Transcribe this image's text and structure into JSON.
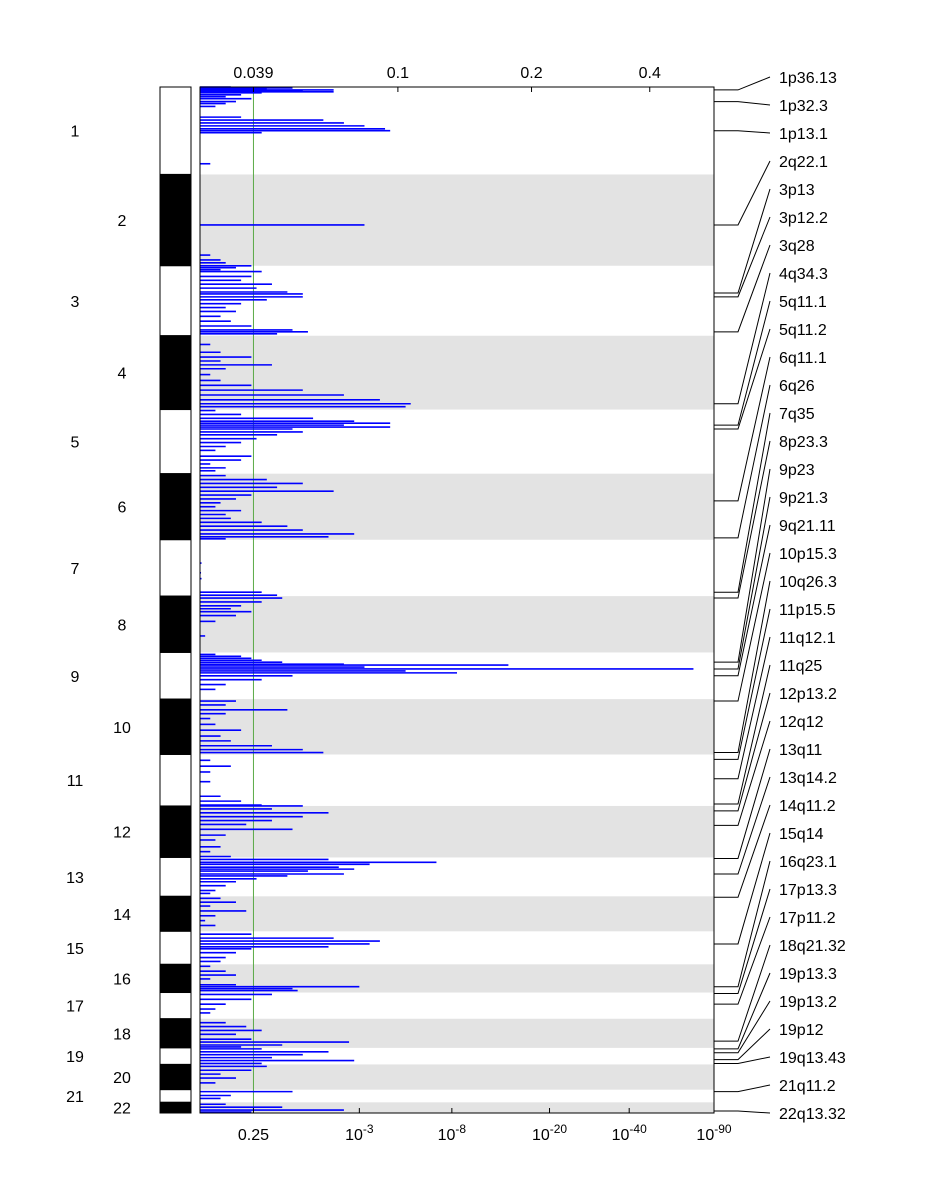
{
  "chart_data": {
    "type": "genomic-significance-plot",
    "chromosomes": [
      {
        "name": "1",
        "start": 0,
        "end": 9.0
      },
      {
        "name": "2",
        "start": 9.0,
        "end": 18.4
      },
      {
        "name": "3",
        "start": 18.4,
        "end": 25.6
      },
      {
        "name": "4",
        "start": 25.6,
        "end": 33.2
      },
      {
        "name": "5",
        "start": 33.2,
        "end": 39.8
      },
      {
        "name": "6",
        "start": 39.8,
        "end": 46.6
      },
      {
        "name": "7",
        "start": 46.6,
        "end": 52.4
      },
      {
        "name": "8",
        "start": 52.4,
        "end": 58.2
      },
      {
        "name": "9",
        "start": 58.2,
        "end": 63.0
      },
      {
        "name": "10",
        "start": 63.0,
        "end": 68.7
      },
      {
        "name": "11",
        "start": 68.7,
        "end": 74.0
      },
      {
        "name": "12",
        "start": 74.0,
        "end": 79.3
      },
      {
        "name": "13",
        "start": 79.3,
        "end": 83.3
      },
      {
        "name": "14",
        "start": 83.3,
        "end": 86.9
      },
      {
        "name": "15",
        "start": 86.9,
        "end": 90.3
      },
      {
        "name": "16",
        "start": 90.3,
        "end": 93.2
      },
      {
        "name": "17",
        "start": 93.2,
        "end": 95.9
      },
      {
        "name": "18",
        "start": 95.9,
        "end": 98.9
      },
      {
        "name": "19",
        "start": 98.9,
        "end": 100.6
      },
      {
        "name": "20",
        "start": 100.6,
        "end": 103.2
      },
      {
        "name": "21",
        "start": 103.2,
        "end": 104.5
      },
      {
        "name": "22",
        "start": 104.5,
        "end": 105.6
      }
    ],
    "genome_end": 105.6,
    "threshold": {
      "q": 0.25,
      "score": 0.039,
      "color": "#5aaa46"
    },
    "bottom_axis": {
      "ticks": [
        {
          "pos": 0.104,
          "base": "0.25",
          "exp": ""
        },
        {
          "pos": 0.31,
          "base": "10",
          "exp": "-3"
        },
        {
          "pos": 0.49,
          "base": "10",
          "exp": "-8"
        },
        {
          "pos": 0.68,
          "base": "10",
          "exp": "-20"
        },
        {
          "pos": 0.835,
          "base": "10",
          "exp": "-40"
        },
        {
          "pos": 1.0,
          "base": "10",
          "exp": "-90"
        }
      ]
    },
    "top_axis": {
      "ticks": [
        {
          "pos": 0.104,
          "label": "0.039"
        },
        {
          "pos": 0.385,
          "label": "0.1"
        },
        {
          "pos": 0.645,
          "label": "0.2"
        },
        {
          "pos": 0.875,
          "label": "0.4"
        }
      ]
    },
    "peaks": [
      {
        "label": "1p36.13",
        "pos": 0.3
      },
      {
        "label": "1p32.3",
        "pos": 1.5
      },
      {
        "label": "1p13.1",
        "pos": 4.5
      },
      {
        "label": "2q22.1",
        "pos": 14.2
      },
      {
        "label": "3p13",
        "pos": 21.2
      },
      {
        "label": "3p12.2",
        "pos": 21.6
      },
      {
        "label": "3q28",
        "pos": 25.2
      },
      {
        "label": "4q34.3",
        "pos": 32.6
      },
      {
        "label": "5q11.1",
        "pos": 34.8
      },
      {
        "label": "5q11.2",
        "pos": 35.2
      },
      {
        "label": "6q11.1",
        "pos": 42.6
      },
      {
        "label": "6q26",
        "pos": 46.4
      },
      {
        "label": "7q35",
        "pos": 52.0
      },
      {
        "label": "8p23.3",
        "pos": 52.6
      },
      {
        "label": "9p23",
        "pos": 59.2
      },
      {
        "label": "9p21.3",
        "pos": 59.9
      },
      {
        "label": "9q21.11",
        "pos": 60.6
      },
      {
        "label": "10p15.3",
        "pos": 63.2
      },
      {
        "label": "10q26.3",
        "pos": 68.5
      },
      {
        "label": "11p15.5",
        "pos": 69.2
      },
      {
        "label": "11q12.1",
        "pos": 71.2
      },
      {
        "label": "11q25",
        "pos": 73.8
      },
      {
        "label": "12p13.2",
        "pos": 74.5
      },
      {
        "label": "12q12",
        "pos": 76.0
      },
      {
        "label": "13q11",
        "pos": 79.4
      },
      {
        "label": "13q14.2",
        "pos": 81.0
      },
      {
        "label": "14q11.2",
        "pos": 83.4
      },
      {
        "label": "15q14",
        "pos": 88.2
      },
      {
        "label": "16q23.1",
        "pos": 92.6
      },
      {
        "label": "17p13.3",
        "pos": 93.3
      },
      {
        "label": "17p11.2",
        "pos": 94.4
      },
      {
        "label": "18q21.32",
        "pos": 98.2
      },
      {
        "label": "19p13.3",
        "pos": 99.0
      },
      {
        "label": "19p13.2",
        "pos": 99.4
      },
      {
        "label": "19p12",
        "pos": 100.1
      },
      {
        "label": "19q13.43",
        "pos": 100.5
      },
      {
        "label": "21q11.2",
        "pos": 103.4
      },
      {
        "label": "22q13.32",
        "pos": 105.4
      }
    ],
    "bars": [
      [
        0.0,
        0.06
      ],
      [
        0.1,
        0.18
      ],
      [
        0.2,
        0.13
      ],
      [
        0.3,
        0.26
      ],
      [
        0.4,
        0.2
      ],
      [
        0.5,
        0.26
      ],
      [
        0.6,
        0.12
      ],
      [
        0.8,
        0.08
      ],
      [
        1.0,
        0.05
      ],
      [
        1.2,
        0.1
      ],
      [
        1.5,
        0.07
      ],
      [
        1.7,
        0.05
      ],
      [
        2.0,
        0.03
      ],
      [
        3.1,
        0.08
      ],
      [
        3.4,
        0.24
      ],
      [
        3.7,
        0.28
      ],
      [
        4.0,
        0.32
      ],
      [
        4.3,
        0.36
      ],
      [
        4.5,
        0.37
      ],
      [
        4.7,
        0.12
      ],
      [
        7.9,
        0.02
      ],
      [
        14.2,
        0.32
      ],
      [
        17.3,
        0.02
      ],
      [
        17.8,
        0.04
      ],
      [
        18.1,
        0.05
      ],
      [
        18.4,
        0.1
      ],
      [
        18.6,
        0.07
      ],
      [
        18.8,
        0.04
      ],
      [
        19.0,
        0.12
      ],
      [
        19.5,
        0.1
      ],
      [
        19.9,
        0.08
      ],
      [
        20.3,
        0.14
      ],
      [
        20.7,
        0.11
      ],
      [
        21.1,
        0.17
      ],
      [
        21.3,
        0.2
      ],
      [
        21.6,
        0.2
      ],
      [
        21.9,
        0.13
      ],
      [
        22.3,
        0.08
      ],
      [
        22.7,
        0.05
      ],
      [
        23.1,
        0.07
      ],
      [
        23.6,
        0.04
      ],
      [
        24.1,
        0.06
      ],
      [
        24.6,
        0.1
      ],
      [
        25.0,
        0.18
      ],
      [
        25.2,
        0.21
      ],
      [
        25.4,
        0.15
      ],
      [
        26.5,
        0.02
      ],
      [
        27.3,
        0.04
      ],
      [
        27.8,
        0.1
      ],
      [
        28.2,
        0.04
      ],
      [
        28.6,
        0.14
      ],
      [
        29.0,
        0.05
      ],
      [
        29.6,
        0.02
      ],
      [
        30.2,
        0.04
      ],
      [
        30.7,
        0.1
      ],
      [
        31.2,
        0.2
      ],
      [
        31.7,
        0.28
      ],
      [
        32.2,
        0.35
      ],
      [
        32.6,
        0.41
      ],
      [
        32.9,
        0.4
      ],
      [
        33.3,
        0.03
      ],
      [
        33.7,
        0.08
      ],
      [
        34.1,
        0.22
      ],
      [
        34.4,
        0.3
      ],
      [
        34.6,
        0.37
      ],
      [
        34.8,
        0.28
      ],
      [
        35.0,
        0.37
      ],
      [
        35.2,
        0.18
      ],
      [
        35.5,
        0.2
      ],
      [
        35.8,
        0.15
      ],
      [
        36.2,
        0.11
      ],
      [
        36.6,
        0.08
      ],
      [
        37.0,
        0.05
      ],
      [
        37.4,
        0.03
      ],
      [
        38.0,
        0.1
      ],
      [
        38.4,
        0.08
      ],
      [
        38.8,
        0.02
      ],
      [
        39.2,
        0.05
      ],
      [
        39.5,
        0.03
      ],
      [
        40.0,
        0.05
      ],
      [
        40.4,
        0.13
      ],
      [
        40.8,
        0.2
      ],
      [
        41.2,
        0.15
      ],
      [
        41.6,
        0.26
      ],
      [
        42.0,
        0.1
      ],
      [
        42.4,
        0.07
      ],
      [
        42.8,
        0.04
      ],
      [
        43.2,
        0.03
      ],
      [
        43.6,
        0.08
      ],
      [
        44.0,
        0.05
      ],
      [
        44.4,
        0.06
      ],
      [
        44.8,
        0.12
      ],
      [
        45.2,
        0.17
      ],
      [
        45.6,
        0.2
      ],
      [
        46.0,
        0.3
      ],
      [
        46.3,
        0.25
      ],
      [
        46.5,
        0.05
      ],
      [
        49.0,
        0.003
      ],
      [
        50.0,
        0.002
      ],
      [
        50.6,
        0.003
      ],
      [
        52.0,
        0.12
      ],
      [
        52.3,
        0.15
      ],
      [
        52.6,
        0.16
      ],
      [
        53.0,
        0.12
      ],
      [
        53.4,
        0.08
      ],
      [
        53.7,
        0.06
      ],
      [
        54.0,
        0.1
      ],
      [
        54.4,
        0.07
      ],
      [
        55.0,
        0.03
      ],
      [
        56.5,
        0.01
      ],
      [
        58.4,
        0.03
      ],
      [
        58.6,
        0.08
      ],
      [
        58.8,
        0.1
      ],
      [
        59.0,
        0.12
      ],
      [
        59.2,
        0.16
      ],
      [
        59.4,
        0.28
      ],
      [
        59.5,
        0.6
      ],
      [
        59.7,
        0.32
      ],
      [
        59.9,
        0.96
      ],
      [
        60.1,
        0.4
      ],
      [
        60.3,
        0.5
      ],
      [
        60.6,
        0.18
      ],
      [
        61.0,
        0.12
      ],
      [
        61.5,
        0.05
      ],
      [
        62.0,
        0.03
      ],
      [
        63.2,
        0.07
      ],
      [
        63.6,
        0.05
      ],
      [
        64.1,
        0.17
      ],
      [
        64.5,
        0.05
      ],
      [
        65.0,
        0.02
      ],
      [
        65.6,
        0.03
      ],
      [
        66.2,
        0.08
      ],
      [
        66.8,
        0.04
      ],
      [
        67.3,
        0.06
      ],
      [
        67.8,
        0.14
      ],
      [
        68.2,
        0.2
      ],
      [
        68.5,
        0.24
      ],
      [
        69.3,
        0.02
      ],
      [
        69.9,
        0.06
      ],
      [
        70.5,
        0.02
      ],
      [
        71.5,
        0.02
      ],
      [
        73.0,
        0.04
      ],
      [
        73.5,
        0.08
      ],
      [
        73.9,
        0.12
      ],
      [
        74.0,
        0.2
      ],
      [
        74.3,
        0.14
      ],
      [
        74.7,
        0.25
      ],
      [
        75.1,
        0.2
      ],
      [
        75.5,
        0.14
      ],
      [
        75.9,
        0.09
      ],
      [
        76.4,
        0.18
      ],
      [
        77.0,
        0.05
      ],
      [
        77.5,
        0.03
      ],
      [
        78.2,
        0.04
      ],
      [
        78.7,
        0.02
      ],
      [
        79.2,
        0.06
      ],
      [
        79.5,
        0.25
      ],
      [
        79.8,
        0.46
      ],
      [
        80.0,
        0.33
      ],
      [
        80.3,
        0.27
      ],
      [
        80.5,
        0.3
      ],
      [
        80.7,
        0.21
      ],
      [
        81.0,
        0.28
      ],
      [
        81.2,
        0.17
      ],
      [
        81.5,
        0.11
      ],
      [
        81.8,
        0.07
      ],
      [
        82.2,
        0.05
      ],
      [
        82.7,
        0.03
      ],
      [
        83.0,
        0.02
      ],
      [
        83.5,
        0.04
      ],
      [
        83.9,
        0.07
      ],
      [
        84.3,
        0.02
      ],
      [
        84.8,
        0.09
      ],
      [
        85.3,
        0.03
      ],
      [
        85.8,
        0.01
      ],
      [
        86.3,
        0.03
      ],
      [
        87.2,
        0.1
      ],
      [
        87.6,
        0.26
      ],
      [
        87.9,
        0.35
      ],
      [
        88.2,
        0.33
      ],
      [
        88.5,
        0.25
      ],
      [
        88.7,
        0.1
      ],
      [
        89.1,
        0.07
      ],
      [
        89.6,
        0.05
      ],
      [
        90.0,
        0.04
      ],
      [
        90.5,
        0.02
      ],
      [
        91.0,
        0.05
      ],
      [
        91.4,
        0.07
      ],
      [
        91.8,
        0.02
      ],
      [
        92.4,
        0.07
      ],
      [
        92.6,
        0.31
      ],
      [
        92.8,
        0.18
      ],
      [
        93.0,
        0.19
      ],
      [
        93.4,
        0.14
      ],
      [
        93.9,
        0.1
      ],
      [
        94.4,
        0.05
      ],
      [
        94.9,
        0.03
      ],
      [
        95.3,
        0.02
      ],
      [
        96.3,
        0.05
      ],
      [
        96.7,
        0.09
      ],
      [
        97.1,
        0.12
      ],
      [
        97.5,
        0.07
      ],
      [
        98.0,
        0.1
      ],
      [
        98.3,
        0.29
      ],
      [
        98.6,
        0.16
      ],
      [
        98.8,
        0.08
      ],
      [
        99.0,
        0.12
      ],
      [
        99.3,
        0.25
      ],
      [
        99.6,
        0.2
      ],
      [
        99.9,
        0.14
      ],
      [
        100.2,
        0.3
      ],
      [
        100.5,
        0.12
      ],
      [
        100.8,
        0.13
      ],
      [
        101.2,
        0.1
      ],
      [
        101.6,
        0.04
      ],
      [
        102.0,
        0.07
      ],
      [
        102.5,
        0.03
      ],
      [
        103.4,
        0.18
      ],
      [
        103.8,
        0.06
      ],
      [
        104.1,
        0.04
      ],
      [
        104.7,
        0.05
      ],
      [
        105.0,
        0.16
      ],
      [
        105.3,
        0.28
      ],
      [
        105.5,
        0.1
      ]
    ]
  }
}
